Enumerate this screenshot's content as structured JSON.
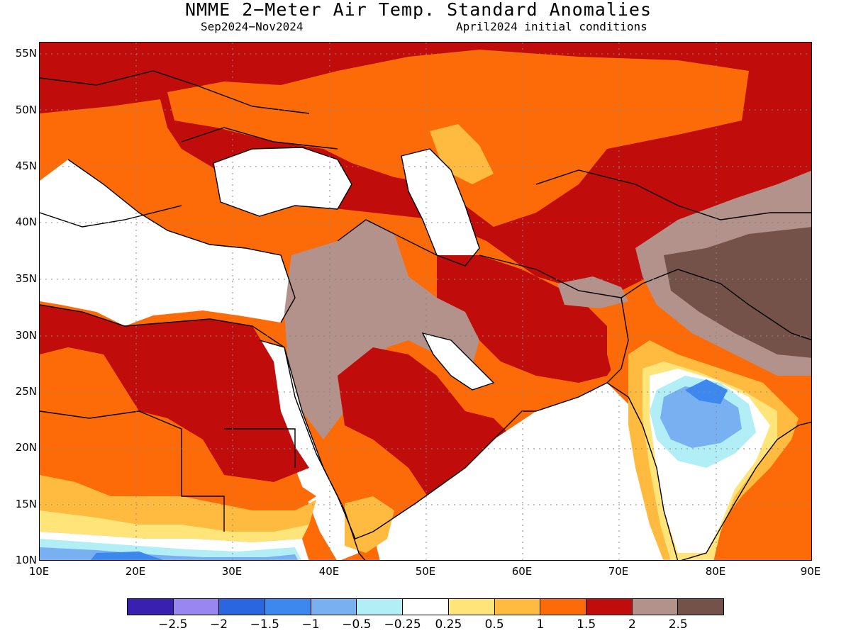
{
  "title": "NMME 2−Meter Air Temp. Standard Anomalies",
  "subtitle_left": "Sep2024−Nov2024",
  "subtitle_right": "April2024 initial conditions",
  "map": {
    "lon_range": [
      10,
      90
    ],
    "lat_range": [
      10,
      56
    ],
    "lat_ticks": [
      "55N",
      "50N",
      "45N",
      "40N",
      "35N",
      "30N",
      "25N",
      "20N",
      "15N",
      "10N"
    ],
    "lon_ticks": [
      "10E",
      "20E",
      "30E",
      "40E",
      "50E",
      "60E",
      "70E",
      "80E",
      "90E"
    ],
    "gridlines": "dotted",
    "regions": [
      "Europe",
      "Black Sea",
      "Caspian Sea",
      "Mediterranean Sea",
      "Arabian Peninsula",
      "Red Sea",
      "India",
      "Tibetan Plateau",
      "Central Asia",
      "North Africa"
    ]
  },
  "legend": {
    "colors": [
      "#3a20b0",
      "#9a86f0",
      "#2a66e0",
      "#3c88ee",
      "#78b0f2",
      "#b2eef6",
      "#ffffff",
      "#ffe47a",
      "#ffbb40",
      "#fd6b08",
      "#c10c0c",
      "#b2928a",
      "#74524a"
    ],
    "labels": [
      "−2.5",
      "−2",
      "−1.5",
      "−1",
      "−0.5",
      "−0.25",
      "0.25",
      "0.5",
      "1",
      "1.5",
      "2",
      "2.5"
    ]
  }
}
